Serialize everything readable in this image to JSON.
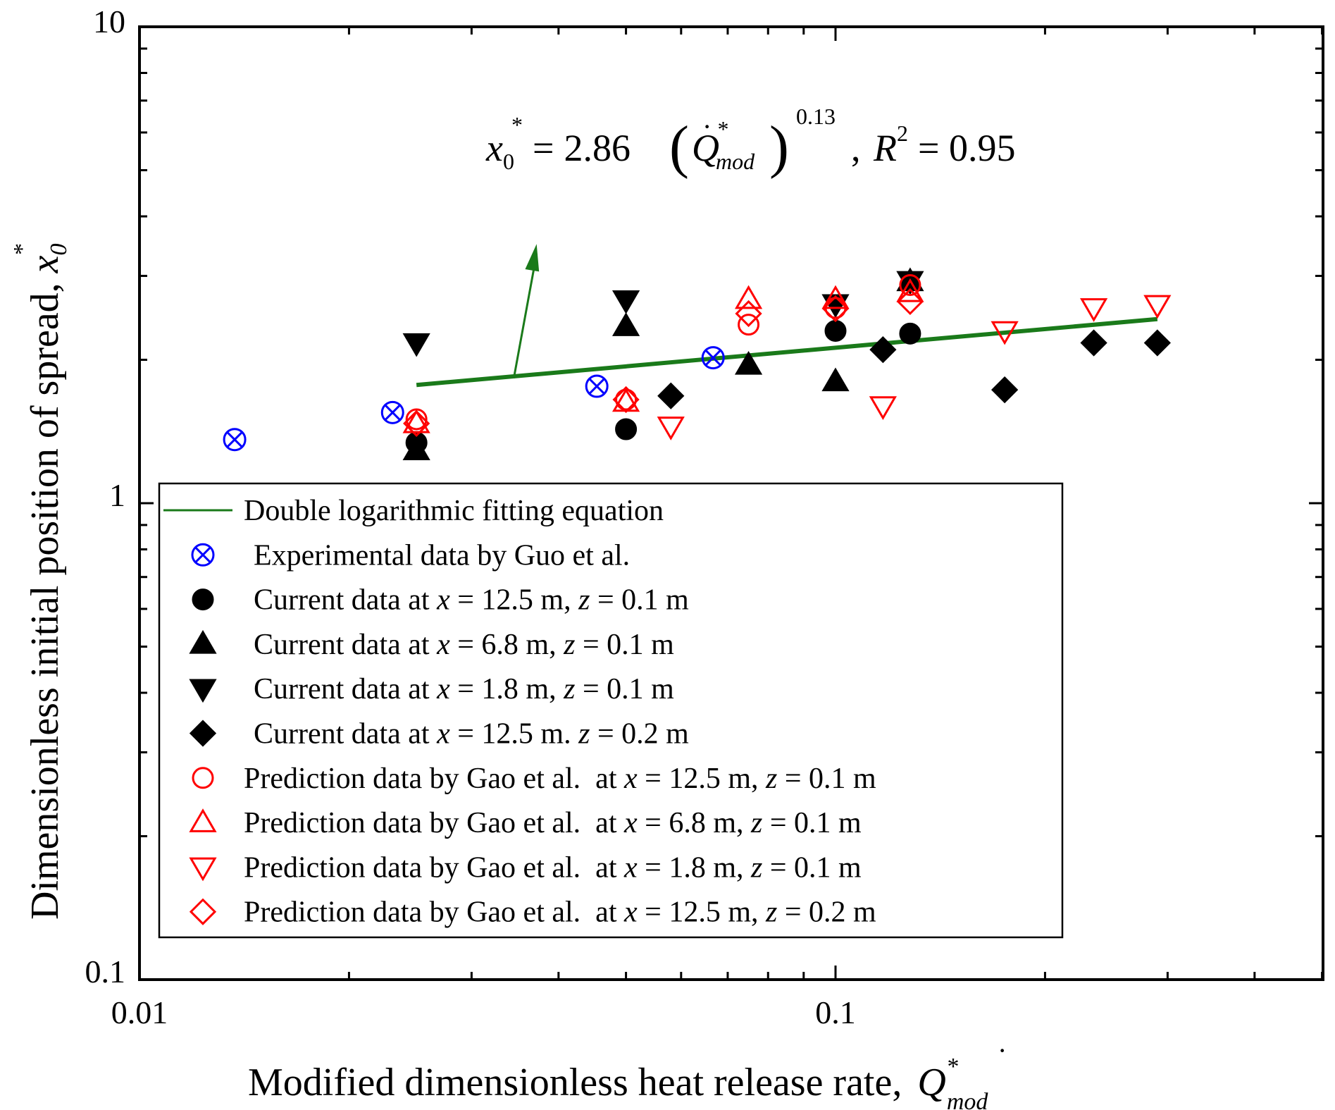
{
  "chart_data": {
    "type": "scatter",
    "xscale": "log",
    "yscale": "log",
    "xlim": [
      0.01,
      0.5
    ],
    "ylim": [
      0.1,
      10
    ],
    "xticks": [
      {
        "value": 0.01,
        "label": "0.01"
      },
      {
        "value": 0.1,
        "label": "0.1"
      }
    ],
    "yticks": [
      {
        "value": 0.1,
        "label": "0.1"
      },
      {
        "value": 1,
        "label": "1"
      },
      {
        "value": 10,
        "label": "10"
      }
    ],
    "xlabel": "Modified dimensionless heat release rate,",
    "xlabel_symbol": "Q",
    "xlabel_sup": "*",
    "xlabel_sub": "mod",
    "ylabel": "Dimensionless initial position of spread,",
    "ylabel_symbol": "x",
    "ylabel_sub": "0",
    "ylabel_sup": "*",
    "annotation": {
      "var": "x",
      "var_sub": "0",
      "var_sup": "*",
      "equals": "=",
      "coef": "2.86",
      "q": "Q",
      "q_sup": "*",
      "q_sub": "mod",
      "exponent": "0.13",
      "r_label": "R",
      "r_sup": "2",
      "r_value": "= 0.95",
      "arrow_from": [
        0.0345,
        1.83
      ],
      "arrow_to": [
        0.0372,
        3.5
      ]
    },
    "fit": {
      "name": "Double logarithmic fitting equation",
      "color": "#1a7a1a",
      "coefficient": 2.86,
      "exponent": 0.13,
      "x_range": [
        0.025,
        0.29
      ]
    },
    "series": [
      {
        "name": "Experimental data by Guo et al.",
        "marker": "crossed-circle",
        "color": "#0000ff",
        "fill": false,
        "points": [
          [
            0.0137,
            1.36
          ],
          [
            0.0231,
            1.55
          ],
          [
            0.0454,
            1.76
          ],
          [
            0.0667,
            2.02
          ]
        ]
      },
      {
        "name_pre": "Current data at ",
        "name_var1": "x",
        "name_mid": " = 12.5 m, ",
        "name_var2": "z",
        "name_post": " = 0.1 m",
        "marker": "circle",
        "color": "#000000",
        "fill": true,
        "points": [
          [
            0.025,
            1.34
          ],
          [
            0.05,
            1.43
          ],
          [
            0.1,
            2.3
          ],
          [
            0.128,
            2.27
          ]
        ]
      },
      {
        "name_pre": "Current data at ",
        "name_var1": "x",
        "name_mid": " = 6.8 m, ",
        "name_var2": "z",
        "name_post": " = 0.1 m",
        "marker": "triangle-up",
        "color": "#000000",
        "fill": true,
        "points": [
          [
            0.025,
            1.29
          ],
          [
            0.05,
            2.35
          ],
          [
            0.075,
            1.95
          ],
          [
            0.1,
            1.8
          ],
          [
            0.128,
            2.92
          ]
        ]
      },
      {
        "name_pre": "Current data at ",
        "name_var1": "x",
        "name_mid": " = 1.8 m, ",
        "name_var2": "z",
        "name_post": " = 0.1 m",
        "marker": "triangle-down",
        "color": "#000000",
        "fill": true,
        "points": [
          [
            0.025,
            2.17
          ],
          [
            0.05,
            2.67
          ],
          [
            0.1,
            2.62
          ],
          [
            0.128,
            2.93
          ]
        ]
      },
      {
        "name_pre": "Current data at ",
        "name_var1": "x",
        "name_mid": " = 12.5 m. ",
        "name_var2": "z",
        "name_post": " = 0.2 m",
        "marker": "diamond",
        "color": "#000000",
        "fill": true,
        "points": [
          [
            0.058,
            1.68
          ],
          [
            0.117,
            2.1
          ],
          [
            0.175,
            1.73
          ],
          [
            0.235,
            2.17
          ],
          [
            0.29,
            2.17
          ]
        ]
      },
      {
        "name_pre": "Prediction data by Gao et al.  at ",
        "name_var1": "x",
        "name_mid": " = 12.5 m, ",
        "name_var2": "z",
        "name_post": " = 0.1 m",
        "marker": "circle",
        "color": "#ff0000",
        "fill": false,
        "points": [
          [
            0.025,
            1.5
          ],
          [
            0.05,
            1.65
          ],
          [
            0.075,
            2.37
          ],
          [
            0.1,
            2.57
          ],
          [
            0.128,
            2.87
          ]
        ]
      },
      {
        "name_pre": "Prediction data by Gao et al.  at ",
        "name_var1": "x",
        "name_mid": " = 6.8 m, ",
        "name_var2": "z",
        "name_post": " = 0.1 m",
        "marker": "triangle-up",
        "color": "#ff0000",
        "fill": false,
        "points": [
          [
            0.025,
            1.47
          ],
          [
            0.05,
            1.63
          ],
          [
            0.075,
            2.68
          ],
          [
            0.1,
            2.68
          ],
          [
            0.128,
            2.77
          ]
        ]
      },
      {
        "name_pre": "Prediction data by Gao et al.  at ",
        "name_var1": "x",
        "name_mid": " = 1.8 m, ",
        "name_var2": "z",
        "name_post": " = 0.1 m",
        "marker": "triangle-down",
        "color": "#ff0000",
        "fill": false,
        "points": [
          [
            0.058,
            1.45
          ],
          [
            0.117,
            1.6
          ],
          [
            0.175,
            2.3
          ],
          [
            0.235,
            2.57
          ],
          [
            0.29,
            2.61
          ]
        ]
      },
      {
        "name_pre": "Prediction data by Gao et al.  at ",
        "name_var1": "x",
        "name_mid": " = 12.5 m, ",
        "name_var2": "z",
        "name_post": " = 0.2 m",
        "marker": "diamond",
        "color": "#ff0000",
        "fill": false,
        "points": [
          [
            0.025,
            1.47
          ],
          [
            0.05,
            1.65
          ],
          [
            0.075,
            2.5
          ],
          [
            0.1,
            2.56
          ],
          [
            0.128,
            2.65
          ]
        ]
      }
    ]
  }
}
